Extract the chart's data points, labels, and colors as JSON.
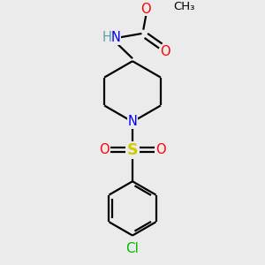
{
  "bg_color": "#ebebeb",
  "bond_color": "#000000",
  "N_color": "#0000ff",
  "O_color": "#ff0000",
  "S_color": "#cccc00",
  "Cl_color": "#00bb00",
  "H_color": "#5f9f9f",
  "line_width": 1.6,
  "dbo": 0.055,
  "font_size": 10.5,
  "small_font_size": 9.5,
  "xlim": [
    -1.6,
    1.6
  ],
  "ylim": [
    -2.6,
    2.0
  ]
}
